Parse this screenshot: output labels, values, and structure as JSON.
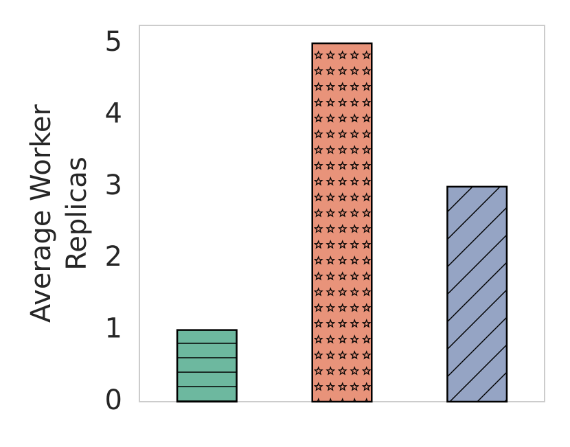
{
  "chart_data": {
    "type": "bar",
    "ylabel": [
      "Average Worker",
      "Replicas"
    ],
    "categories": [
      null,
      null,
      null
    ],
    "values": [
      1,
      5,
      3
    ],
    "colors": [
      "#6db89f",
      "#e8937a",
      "#95a4c4"
    ],
    "hatches": [
      "-",
      "*",
      "/"
    ],
    "ylim": [
      0,
      5.25
    ],
    "yticks": [
      0,
      1,
      2,
      3,
      4,
      5
    ],
    "grid": false
  }
}
